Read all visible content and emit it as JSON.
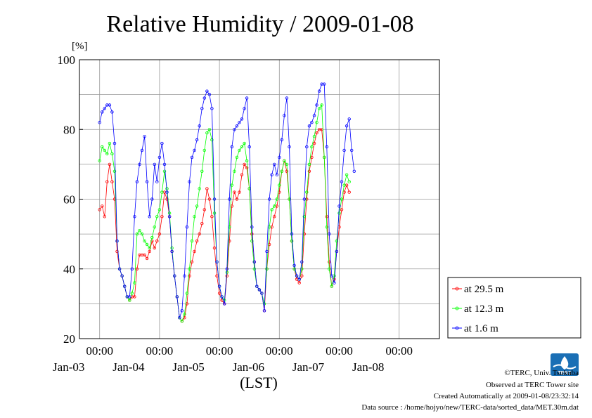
{
  "chart_data": {
    "type": "line",
    "title": "Relative Humidity / 2009-01-08",
    "ylabel": "[%]",
    "xlabel": "(LST)",
    "ylim": [
      20,
      100
    ],
    "yticks": [
      20,
      40,
      60,
      80,
      100
    ],
    "xlim_hours": [
      0,
      144
    ],
    "xticks": [
      {
        "time": "00:00",
        "date": "Jan-03",
        "hour": 24
      },
      {
        "time": "00:00",
        "date": "Jan-04",
        "hour": 48
      },
      {
        "time": "00:00",
        "date": "Jan-05",
        "hour": 72
      },
      {
        "time": "00:00",
        "date": "Jan-06",
        "hour": 96
      },
      {
        "time": "00:00",
        "date": "Jan-07",
        "hour": 120
      },
      {
        "time": "00:00",
        "date": "Jan-08",
        "hour": 144
      }
    ],
    "grid": true,
    "legend_position": "bottom-right outside",
    "series": [
      {
        "name": "at 29.5 m",
        "color": "#ff0000",
        "points": [
          [
            0,
            57
          ],
          [
            1,
            58
          ],
          [
            2,
            55
          ],
          [
            3,
            65
          ],
          [
            4,
            70
          ],
          [
            5,
            65
          ],
          [
            6,
            60
          ],
          [
            7,
            45
          ],
          [
            8,
            40
          ],
          [
            9,
            38
          ],
          [
            10,
            35
          ],
          [
            11,
            32
          ],
          [
            12,
            31
          ],
          [
            13,
            32
          ],
          [
            14,
            32
          ],
          [
            15,
            40
          ],
          [
            16,
            44
          ],
          [
            17,
            44
          ],
          [
            18,
            44
          ],
          [
            19,
            43
          ],
          [
            20,
            45
          ],
          [
            21,
            48
          ],
          [
            22,
            46
          ],
          [
            23,
            48
          ],
          [
            24,
            50
          ],
          [
            25,
            55
          ],
          [
            26,
            62
          ],
          [
            27,
            60
          ],
          [
            28,
            55
          ],
          [
            29,
            45
          ],
          [
            30,
            38
          ],
          [
            31,
            32
          ],
          [
            32,
            26
          ],
          [
            33,
            25
          ],
          [
            34,
            26
          ],
          [
            35,
            30
          ],
          [
            36,
            38
          ],
          [
            37,
            42
          ],
          [
            38,
            45
          ],
          [
            39,
            48
          ],
          [
            40,
            50
          ],
          [
            41,
            53
          ],
          [
            42,
            57
          ],
          [
            43,
            63
          ],
          [
            44,
            60
          ],
          [
            45,
            55
          ],
          [
            46,
            46
          ],
          [
            47,
            38
          ],
          [
            48,
            33
          ],
          [
            49,
            31
          ],
          [
            50,
            30
          ],
          [
            51,
            38
          ],
          [
            52,
            48
          ],
          [
            53,
            58
          ],
          [
            54,
            62
          ],
          [
            55,
            60
          ],
          [
            56,
            62
          ],
          [
            57,
            67
          ],
          [
            58,
            70
          ],
          [
            59,
            69
          ],
          [
            60,
            63
          ],
          [
            61,
            50
          ],
          [
            62,
            42
          ],
          [
            63,
            35
          ],
          [
            64,
            34
          ],
          [
            65,
            33
          ],
          [
            66,
            28
          ],
          [
            67,
            40
          ],
          [
            68,
            47
          ],
          [
            69,
            52
          ],
          [
            70,
            55
          ],
          [
            71,
            58
          ],
          [
            72,
            62
          ],
          [
            73,
            68
          ],
          [
            74,
            71
          ],
          [
            75,
            68
          ],
          [
            76,
            60
          ],
          [
            77,
            48
          ],
          [
            78,
            40
          ],
          [
            79,
            37
          ],
          [
            80,
            36
          ],
          [
            81,
            38
          ],
          [
            82,
            50
          ],
          [
            83,
            60
          ],
          [
            84,
            68
          ],
          [
            85,
            72
          ],
          [
            86,
            76
          ],
          [
            87,
            79
          ],
          [
            88,
            80
          ],
          [
            89,
            80
          ],
          [
            90,
            72
          ],
          [
            91,
            55
          ],
          [
            92,
            42
          ],
          [
            93,
            35
          ],
          [
            94,
            37
          ],
          [
            95,
            45
          ],
          [
            96,
            52
          ],
          [
            97,
            57
          ],
          [
            98,
            62
          ],
          [
            99,
            64
          ],
          [
            100,
            62
          ]
        ]
      },
      {
        "name": "at 12.3 m",
        "color": "#00ff00",
        "points": [
          [
            0,
            71
          ],
          [
            1,
            75
          ],
          [
            2,
            74
          ],
          [
            3,
            73
          ],
          [
            4,
            76
          ],
          [
            5,
            73
          ],
          [
            6,
            68
          ],
          [
            7,
            48
          ],
          [
            8,
            40
          ],
          [
            9,
            38
          ],
          [
            10,
            35
          ],
          [
            11,
            32
          ],
          [
            12,
            31
          ],
          [
            13,
            33
          ],
          [
            14,
            36
          ],
          [
            15,
            50
          ],
          [
            16,
            51
          ],
          [
            17,
            50
          ],
          [
            18,
            48
          ],
          [
            19,
            47
          ],
          [
            20,
            46
          ],
          [
            21,
            49
          ],
          [
            22,
            52
          ],
          [
            23,
            55
          ],
          [
            24,
            57
          ],
          [
            25,
            62
          ],
          [
            26,
            68
          ],
          [
            27,
            63
          ],
          [
            28,
            56
          ],
          [
            29,
            46
          ],
          [
            30,
            38
          ],
          [
            31,
            32
          ],
          [
            32,
            26
          ],
          [
            33,
            25
          ],
          [
            34,
            27
          ],
          [
            35,
            33
          ],
          [
            36,
            40
          ],
          [
            37,
            48
          ],
          [
            38,
            55
          ],
          [
            39,
            58
          ],
          [
            40,
            63
          ],
          [
            41,
            68
          ],
          [
            42,
            74
          ],
          [
            43,
            79
          ],
          [
            44,
            80
          ],
          [
            45,
            77
          ],
          [
            46,
            56
          ],
          [
            47,
            42
          ],
          [
            48,
            35
          ],
          [
            49,
            32
          ],
          [
            50,
            31
          ],
          [
            51,
            39
          ],
          [
            52,
            52
          ],
          [
            53,
            64
          ],
          [
            54,
            68
          ],
          [
            55,
            72
          ],
          [
            56,
            74
          ],
          [
            57,
            75
          ],
          [
            58,
            76
          ],
          [
            59,
            71
          ],
          [
            60,
            63
          ],
          [
            61,
            48
          ],
          [
            62,
            40
          ],
          [
            63,
            35
          ],
          [
            64,
            34
          ],
          [
            65,
            33
          ],
          [
            66,
            30
          ],
          [
            67,
            40
          ],
          [
            68,
            52
          ],
          [
            69,
            57
          ],
          [
            70,
            58
          ],
          [
            71,
            60
          ],
          [
            72,
            64
          ],
          [
            73,
            68
          ],
          [
            74,
            71
          ],
          [
            75,
            70
          ],
          [
            76,
            60
          ],
          [
            77,
            48
          ],
          [
            78,
            40
          ],
          [
            79,
            38
          ],
          [
            80,
            37
          ],
          [
            81,
            40
          ],
          [
            82,
            55
          ],
          [
            83,
            62
          ],
          [
            84,
            70
          ],
          [
            85,
            75
          ],
          [
            86,
            78
          ],
          [
            87,
            82
          ],
          [
            88,
            86
          ],
          [
            89,
            87
          ],
          [
            90,
            72
          ],
          [
            91,
            52
          ],
          [
            92,
            40
          ],
          [
            93,
            35
          ],
          [
            94,
            38
          ],
          [
            95,
            48
          ],
          [
            96,
            56
          ],
          [
            97,
            60
          ],
          [
            98,
            64
          ],
          [
            99,
            67
          ],
          [
            100,
            65
          ]
        ]
      },
      {
        "name": "at 1.6 m",
        "color": "#0000ff",
        "points": [
          [
            0,
            82
          ],
          [
            1,
            85
          ],
          [
            2,
            86
          ],
          [
            3,
            87
          ],
          [
            4,
            87
          ],
          [
            5,
            85
          ],
          [
            6,
            76
          ],
          [
            7,
            48
          ],
          [
            8,
            40
          ],
          [
            9,
            38
          ],
          [
            10,
            35
          ],
          [
            11,
            32
          ],
          [
            12,
            32
          ],
          [
            13,
            40
          ],
          [
            14,
            55
          ],
          [
            15,
            65
          ],
          [
            16,
            70
          ],
          [
            17,
            74
          ],
          [
            18,
            78
          ],
          [
            19,
            65
          ],
          [
            20,
            55
          ],
          [
            21,
            60
          ],
          [
            22,
            70
          ],
          [
            23,
            65
          ],
          [
            24,
            72
          ],
          [
            25,
            76
          ],
          [
            26,
            70
          ],
          [
            27,
            62
          ],
          [
            28,
            55
          ],
          [
            29,
            45
          ],
          [
            30,
            38
          ],
          [
            31,
            32
          ],
          [
            32,
            26
          ],
          [
            33,
            28
          ],
          [
            34,
            38
          ],
          [
            35,
            52
          ],
          [
            36,
            65
          ],
          [
            37,
            72
          ],
          [
            38,
            74
          ],
          [
            39,
            77
          ],
          [
            40,
            81
          ],
          [
            41,
            86
          ],
          [
            42,
            89
          ],
          [
            43,
            91
          ],
          [
            44,
            90
          ],
          [
            45,
            86
          ],
          [
            46,
            60
          ],
          [
            47,
            42
          ],
          [
            48,
            35
          ],
          [
            49,
            32
          ],
          [
            50,
            30
          ],
          [
            51,
            40
          ],
          [
            52,
            60
          ],
          [
            53,
            75
          ],
          [
            54,
            80
          ],
          [
            55,
            81
          ],
          [
            56,
            82
          ],
          [
            57,
            83
          ],
          [
            58,
            86
          ],
          [
            59,
            89
          ],
          [
            60,
            75
          ],
          [
            61,
            52
          ],
          [
            62,
            42
          ],
          [
            63,
            35
          ],
          [
            64,
            34
          ],
          [
            65,
            33
          ],
          [
            66,
            28
          ],
          [
            67,
            45
          ],
          [
            68,
            60
          ],
          [
            69,
            67
          ],
          [
            70,
            70
          ],
          [
            71,
            67
          ],
          [
            72,
            72
          ],
          [
            73,
            77
          ],
          [
            74,
            84
          ],
          [
            75,
            89
          ],
          [
            76,
            75
          ],
          [
            77,
            50
          ],
          [
            78,
            41
          ],
          [
            79,
            38
          ],
          [
            80,
            37
          ],
          [
            81,
            42
          ],
          [
            82,
            60
          ],
          [
            83,
            75
          ],
          [
            84,
            81
          ],
          [
            85,
            82
          ],
          [
            86,
            84
          ],
          [
            87,
            87
          ],
          [
            88,
            91
          ],
          [
            89,
            93
          ],
          [
            90,
            93
          ],
          [
            91,
            75
          ],
          [
            92,
            50
          ],
          [
            93,
            38
          ],
          [
            94,
            36
          ],
          [
            95,
            45
          ],
          [
            96,
            58
          ],
          [
            97,
            65
          ],
          [
            98,
            74
          ],
          [
            99,
            81
          ],
          [
            100,
            83
          ],
          [
            101,
            74
          ],
          [
            102,
            68
          ]
        ]
      }
    ]
  },
  "footer": {
    "copyright": "©TERC, Univ. Tsukuba",
    "observed": "Observed at TERC Tower site",
    "created": "Created Automatically at 2009-01-08/23:32:14",
    "source": "Data source : /home/hojyo/new/TERC-data/sorted_data/MET.30m.dat",
    "logo_text": "TERC"
  }
}
